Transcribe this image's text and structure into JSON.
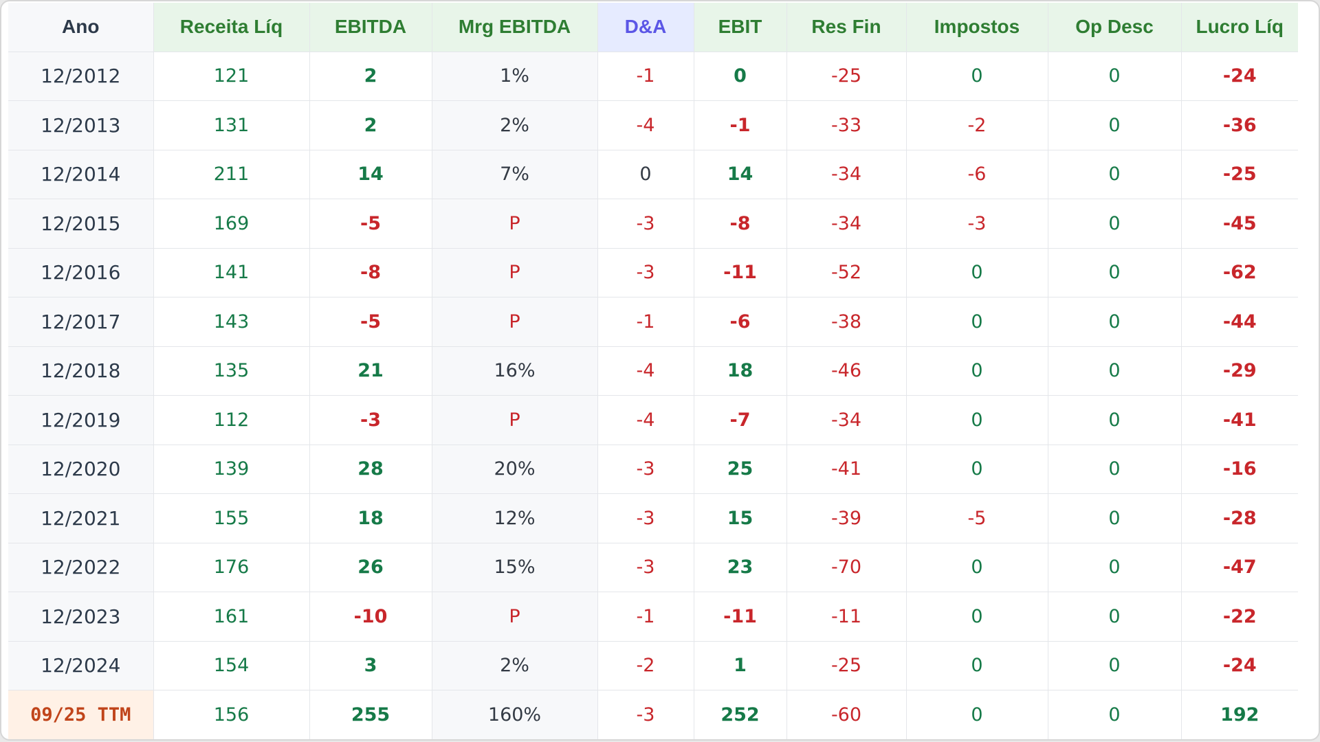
{
  "table": {
    "headers": [
      "Ano",
      "Receita Líq",
      "EBITDA",
      "Mrg EBITDA",
      "D&A",
      "EBIT",
      "Res Fin",
      "Impostos",
      "Op Desc",
      "Lucro Líq"
    ],
    "rows": [
      {
        "year": "12/2012",
        "receita": "121",
        "ebitda": "2",
        "margem": "1%",
        "da": "-1",
        "ebit": "0",
        "res_fin": "-25",
        "impostos": "0",
        "op_desc": "0",
        "lucro": "-24"
      },
      {
        "year": "12/2013",
        "receita": "131",
        "ebitda": "2",
        "margem": "2%",
        "da": "-4",
        "ebit": "-1",
        "res_fin": "-33",
        "impostos": "-2",
        "op_desc": "0",
        "lucro": "-36"
      },
      {
        "year": "12/2014",
        "receita": "211",
        "ebitda": "14",
        "margem": "7%",
        "da": "0",
        "ebit": "14",
        "res_fin": "-34",
        "impostos": "-6",
        "op_desc": "0",
        "lucro": "-25"
      },
      {
        "year": "12/2015",
        "receita": "169",
        "ebitda": "-5",
        "margem": "P",
        "da": "-3",
        "ebit": "-8",
        "res_fin": "-34",
        "impostos": "-3",
        "op_desc": "0",
        "lucro": "-45"
      },
      {
        "year": "12/2016",
        "receita": "141",
        "ebitda": "-8",
        "margem": "P",
        "da": "-3",
        "ebit": "-11",
        "res_fin": "-52",
        "impostos": "0",
        "op_desc": "0",
        "lucro": "-62"
      },
      {
        "year": "12/2017",
        "receita": "143",
        "ebitda": "-5",
        "margem": "P",
        "da": "-1",
        "ebit": "-6",
        "res_fin": "-38",
        "impostos": "0",
        "op_desc": "0",
        "lucro": "-44"
      },
      {
        "year": "12/2018",
        "receita": "135",
        "ebitda": "21",
        "margem": "16%",
        "da": "-4",
        "ebit": "18",
        "res_fin": "-46",
        "impostos": "0",
        "op_desc": "0",
        "lucro": "-29"
      },
      {
        "year": "12/2019",
        "receita": "112",
        "ebitda": "-3",
        "margem": "P",
        "da": "-4",
        "ebit": "-7",
        "res_fin": "-34",
        "impostos": "0",
        "op_desc": "0",
        "lucro": "-41"
      },
      {
        "year": "12/2020",
        "receita": "139",
        "ebitda": "28",
        "margem": "20%",
        "da": "-3",
        "ebit": "25",
        "res_fin": "-41",
        "impostos": "0",
        "op_desc": "0",
        "lucro": "-16"
      },
      {
        "year": "12/2021",
        "receita": "155",
        "ebitda": "18",
        "margem": "12%",
        "da": "-3",
        "ebit": "15",
        "res_fin": "-39",
        "impostos": "-5",
        "op_desc": "0",
        "lucro": "-28"
      },
      {
        "year": "12/2022",
        "receita": "176",
        "ebitda": "26",
        "margem": "15%",
        "da": "-3",
        "ebit": "23",
        "res_fin": "-70",
        "impostos": "0",
        "op_desc": "0",
        "lucro": "-47"
      },
      {
        "year": "12/2023",
        "receita": "161",
        "ebitda": "-10",
        "margem": "P",
        "da": "-1",
        "ebit": "-11",
        "res_fin": "-11",
        "impostos": "0",
        "op_desc": "0",
        "lucro": "-22"
      },
      {
        "year": "12/2024",
        "receita": "154",
        "ebitda": "3",
        "margem": "2%",
        "da": "-2",
        "ebit": "1",
        "res_fin": "-25",
        "impostos": "0",
        "op_desc": "0",
        "lucro": "-24"
      },
      {
        "year": "09/25 TTM",
        "receita": "156",
        "ebitda": "255",
        "margem": "160%",
        "da": "-3",
        "ebit": "252",
        "res_fin": "-60",
        "impostos": "0",
        "op_desc": "0",
        "lucro": "192",
        "ttm": true
      }
    ]
  },
  "colors": {
    "positive": "#167a48",
    "negative": "#c8262b",
    "header_green": "#2e7d32",
    "header_da": "#5b56e6",
    "ttm": "#c0441a"
  }
}
